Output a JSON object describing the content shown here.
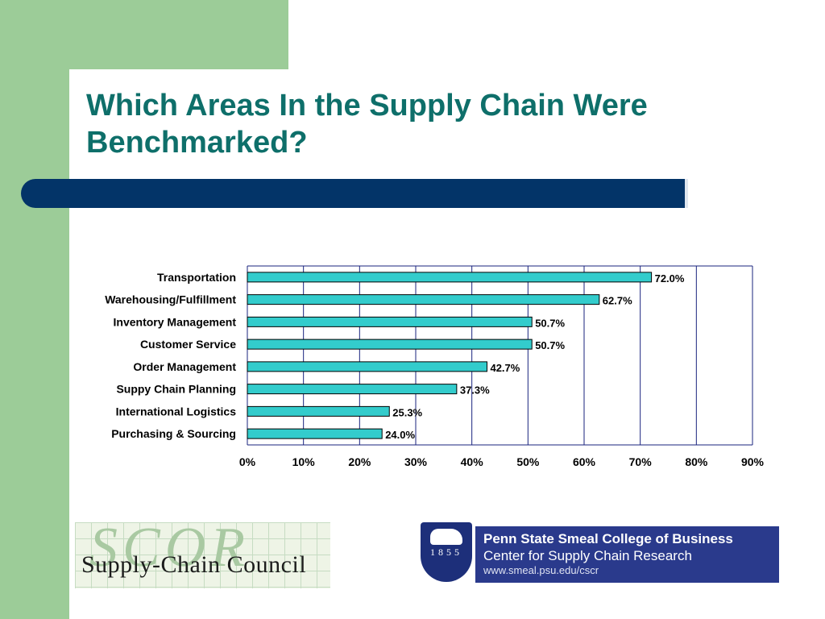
{
  "slide": {
    "title_line1": "Which Areas In the Supply Chain Were",
    "title_line2": "Benchmarked?",
    "colors": {
      "background_band": "#9ccc98",
      "title": "#0e6f6a",
      "divider": "#033468",
      "bar_fill": "#33cccc",
      "gridline": "#1a237e"
    }
  },
  "chart_data": {
    "type": "bar",
    "orientation": "horizontal",
    "categories": [
      "Transportation",
      "Warehousing/Fulfillment",
      "Inventory Management",
      "Customer Service",
      "Order Management",
      "Suppy Chain Planning",
      "International Logistics",
      "Purchasing & Sourcing"
    ],
    "values": [
      72.0,
      62.7,
      50.7,
      50.7,
      42.7,
      37.3,
      25.3,
      24.0
    ],
    "value_labels": [
      "72.0%",
      "62.7%",
      "50.7%",
      "50.7%",
      "42.7%",
      "37.3%",
      "25.3%",
      "24.0%"
    ],
    "xlim": [
      0,
      90
    ],
    "xticks": [
      "0%",
      "10%",
      "20%",
      "30%",
      "40%",
      "50%",
      "60%",
      "70%",
      "80%",
      "90%"
    ],
    "grid": true,
    "legend": "none"
  },
  "logos": {
    "scor_big": "SCOR",
    "scor_text": "Supply-Chain Council",
    "psu_year": "1855",
    "psu_line1": "Penn State Smeal College of Business",
    "psu_line2": "Center for Supply Chain Research",
    "psu_url": "www.smeal.psu.edu/cscr"
  }
}
